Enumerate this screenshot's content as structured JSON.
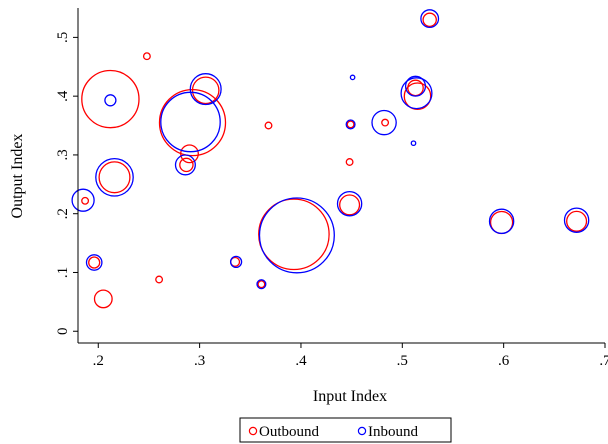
{
  "chart_data": {
    "type": "scatter",
    "title": "",
    "xlabel": "Input Index",
    "ylabel": "Output Index",
    "xlim": [
      0.18,
      0.7
    ],
    "ylim": [
      -0.02,
      0.55
    ],
    "grid": false,
    "legend_position": "bottom-center",
    "x_ticks": [
      0.2,
      0.3,
      0.4,
      0.5,
      0.6,
      0.7
    ],
    "x_tick_labels": [
      ".2",
      ".3",
      ".4",
      ".5",
      ".6",
      ".7"
    ],
    "y_ticks": [
      0,
      0.1,
      0.2,
      0.3,
      0.4,
      0.5
    ],
    "y_tick_labels": [
      "0",
      ".1",
      ".2",
      ".3",
      ".4",
      ".5"
    ],
    "size_note": "marker radius proportional to weight",
    "series": [
      {
        "name": "Outbound",
        "color": "#ff0000",
        "points": [
          {
            "x": 0.212,
            "y": 0.395,
            "weight": 26
          },
          {
            "x": 0.293,
            "y": 0.355,
            "weight": 30
          },
          {
            "x": 0.393,
            "y": 0.165,
            "weight": 32
          },
          {
            "x": 0.205,
            "y": 0.055,
            "weight": 8
          },
          {
            "x": 0.187,
            "y": 0.222,
            "weight": 3
          },
          {
            "x": 0.248,
            "y": 0.468,
            "weight": 3
          },
          {
            "x": 0.216,
            "y": 0.262,
            "weight": 14
          },
          {
            "x": 0.306,
            "y": 0.41,
            "weight": 12
          },
          {
            "x": 0.29,
            "y": 0.302,
            "weight": 8
          },
          {
            "x": 0.287,
            "y": 0.283,
            "weight": 6
          },
          {
            "x": 0.196,
            "y": 0.117,
            "weight": 5
          },
          {
            "x": 0.26,
            "y": 0.088,
            "weight": 3
          },
          {
            "x": 0.335,
            "y": 0.118,
            "weight": 4
          },
          {
            "x": 0.361,
            "y": 0.08,
            "weight": 3
          },
          {
            "x": 0.368,
            "y": 0.35,
            "weight": 3
          },
          {
            "x": 0.449,
            "y": 0.352,
            "weight": 3
          },
          {
            "x": 0.448,
            "y": 0.288,
            "weight": 3
          },
          {
            "x": 0.448,
            "y": 0.215,
            "weight": 9
          },
          {
            "x": 0.483,
            "y": 0.355,
            "weight": 3
          },
          {
            "x": 0.515,
            "y": 0.4,
            "weight": 12
          },
          {
            "x": 0.513,
            "y": 0.414,
            "weight": 7
          },
          {
            "x": 0.527,
            "y": 0.53,
            "weight": 6
          },
          {
            "x": 0.598,
            "y": 0.185,
            "weight": 10
          },
          {
            "x": 0.672,
            "y": 0.187,
            "weight": 9
          }
        ]
      },
      {
        "name": "Inbound",
        "color": "#0000ff",
        "points": [
          {
            "x": 0.212,
            "y": 0.393,
            "weight": 5
          },
          {
            "x": 0.291,
            "y": 0.356,
            "weight": 27
          },
          {
            "x": 0.396,
            "y": 0.163,
            "weight": 34
          },
          {
            "x": 0.185,
            "y": 0.223,
            "weight": 10
          },
          {
            "x": 0.216,
            "y": 0.262,
            "weight": 17
          },
          {
            "x": 0.306,
            "y": 0.412,
            "weight": 14
          },
          {
            "x": 0.286,
            "y": 0.283,
            "weight": 9
          },
          {
            "x": 0.196,
            "y": 0.117,
            "weight": 7
          },
          {
            "x": 0.336,
            "y": 0.118,
            "weight": 5
          },
          {
            "x": 0.361,
            "y": 0.08,
            "weight": 4
          },
          {
            "x": 0.449,
            "y": 0.352,
            "weight": 4
          },
          {
            "x": 0.451,
            "y": 0.432,
            "weight": 2
          },
          {
            "x": 0.448,
            "y": 0.217,
            "weight": 11
          },
          {
            "x": 0.482,
            "y": 0.355,
            "weight": 11
          },
          {
            "x": 0.511,
            "y": 0.32,
            "weight": 2
          },
          {
            "x": 0.514,
            "y": 0.405,
            "weight": 14
          },
          {
            "x": 0.513,
            "y": 0.417,
            "weight": 9
          },
          {
            "x": 0.527,
            "y": 0.532,
            "weight": 8
          },
          {
            "x": 0.598,
            "y": 0.187,
            "weight": 11
          },
          {
            "x": 0.672,
            "y": 0.189,
            "weight": 11
          }
        ]
      }
    ]
  }
}
